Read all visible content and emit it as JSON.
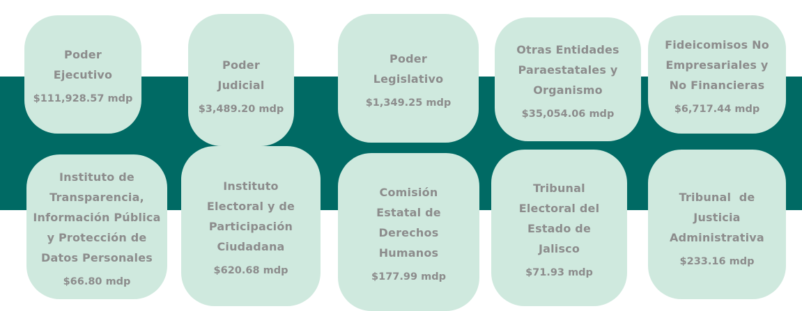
{
  "cards": [
    {
      "name_lines": [
        "Poder",
        "Ejecutivo"
      ],
      "amount": "$111,928.57 mdp"
    },
    {
      "name_lines": [
        "Poder",
        "Judicial"
      ],
      "amount": "$3,489.20 mdp"
    },
    {
      "name_lines": [
        "Poder",
        "Legislativo"
      ],
      "amount": "$1,349.25 mdp"
    },
    {
      "name_lines": [
        "Otras Entidades",
        "Paraestatales y",
        "Organismo"
      ],
      "amount": "$35,054.06 mdp"
    },
    {
      "name_lines": [
        "Fideicomisos No",
        "Empresariales y",
        "No Financieras"
      ],
      "amount": "$6,717.44 mdp"
    },
    {
      "name_lines": [
        "Instituto de",
        "Transparencia,",
        "Información Pública",
        "y Protección de",
        "Datos Personales"
      ],
      "amount": "$66.80 mdp"
    },
    {
      "name_lines": [
        "Instituto",
        "Electoral y de",
        "Participación",
        "Ciudadana"
      ],
      "amount": "$620.68 mdp"
    },
    {
      "name_lines": [
        "Comisión",
        "Estatal de",
        "Derechos",
        "Humanos"
      ],
      "amount": "$177.99 mdp"
    },
    {
      "name_lines": [
        "Tribunal",
        "Electoral del",
        "Estado de",
        "Jalisco"
      ],
      "amount": "$71.93 mdp"
    },
    {
      "name_lines": [
        "Tribunal  de",
        "Justicia",
        "Administrativa"
      ],
      "amount": "$233.16 mdp"
    }
  ]
}
